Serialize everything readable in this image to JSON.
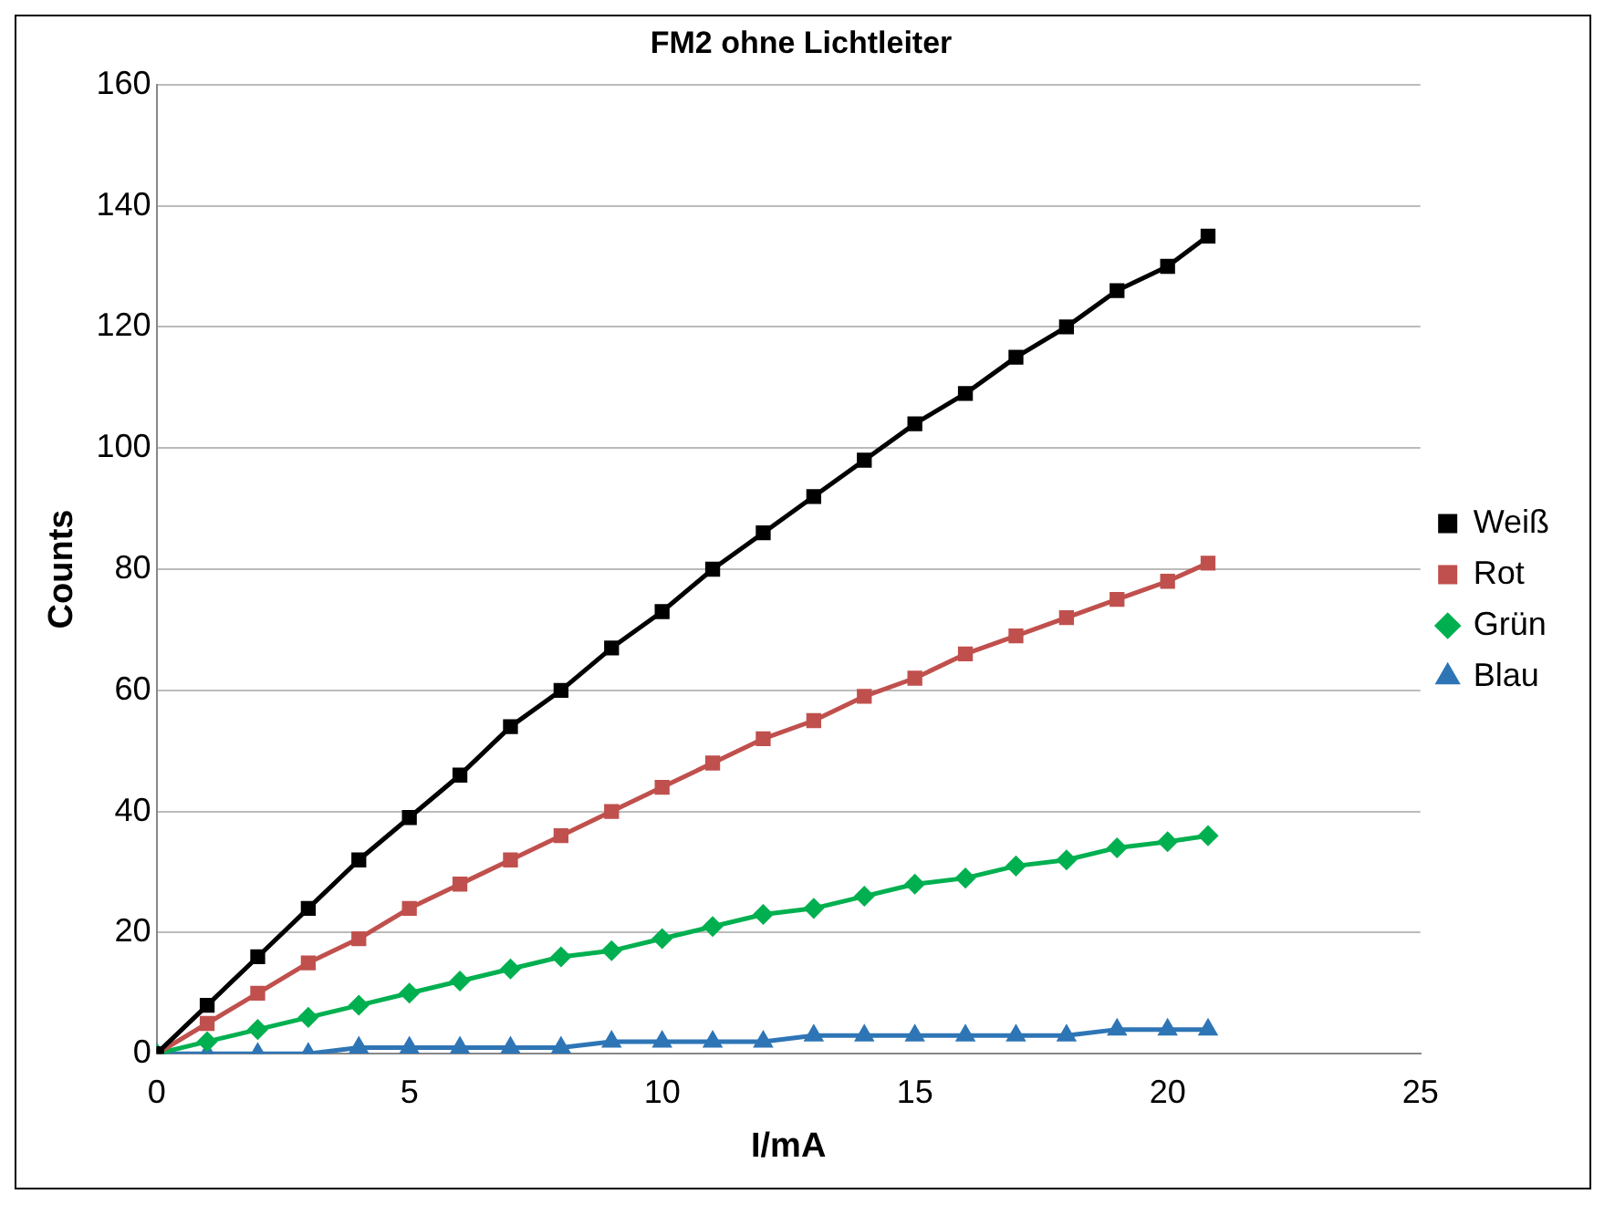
{
  "chart_data": {
    "type": "line",
    "title": "FM2 ohne Lichtleiter",
    "xlabel": "I/mA",
    "ylabel": "Counts",
    "x": [
      0,
      1,
      2,
      3,
      4,
      5,
      6,
      7,
      8,
      9,
      10,
      11,
      12,
      13,
      14,
      15,
      16,
      17,
      18,
      19,
      20,
      20.8
    ],
    "series": [
      {
        "name": "Weiß",
        "color": "#000000",
        "marker": "square",
        "values": [
          0,
          8,
          16,
          24,
          32,
          39,
          46,
          54,
          60,
          67,
          73,
          80,
          86,
          92,
          98,
          104,
          109,
          115,
          120,
          126,
          130,
          135
        ]
      },
      {
        "name": "Rot",
        "color": "#c0504d",
        "marker": "square",
        "values": [
          0,
          5,
          10,
          15,
          19,
          24,
          28,
          32,
          36,
          40,
          44,
          48,
          52,
          55,
          59,
          62,
          66,
          69,
          72,
          75,
          78,
          81
        ]
      },
      {
        "name": "Grün",
        "color": "#00b050",
        "marker": "diamond",
        "values": [
          0,
          2,
          4,
          6,
          8,
          10,
          12,
          14,
          16,
          17,
          19,
          21,
          23,
          24,
          26,
          28,
          29,
          31,
          32,
          34,
          35,
          36
        ]
      },
      {
        "name": "Blau",
        "color": "#2e75b6",
        "marker": "triangle",
        "values": [
          0,
          0,
          0,
          0,
          1,
          1,
          1,
          1,
          1,
          2,
          2,
          2,
          2,
          3,
          3,
          3,
          3,
          3,
          3,
          4,
          4,
          4
        ]
      }
    ],
    "xlim": [
      0,
      25
    ],
    "xticks": [
      0,
      5,
      10,
      15,
      20,
      25
    ],
    "ylim": [
      0,
      160
    ],
    "yticks": [
      0,
      20,
      40,
      60,
      80,
      100,
      120,
      140,
      160
    ],
    "grid": "y",
    "legend": "right",
    "line_style": "solid"
  }
}
